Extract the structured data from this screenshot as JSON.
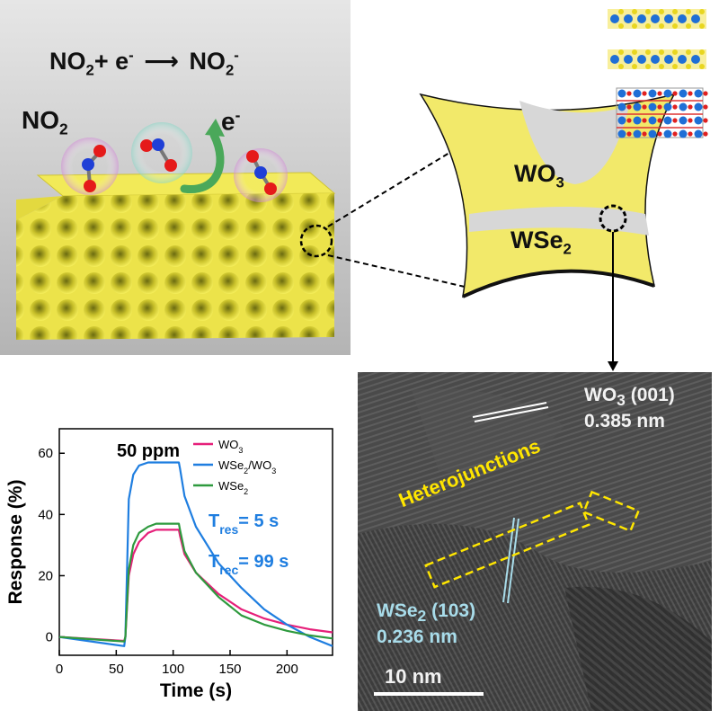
{
  "scheme": {
    "reaction": {
      "lhs": "NO",
      "lhs_sub": "2",
      "plus": "+ e",
      "e_sup": "-",
      "arrow": "⟶",
      "rhs": "NO",
      "rhs_sub": "2",
      "rhs_sup": "-"
    },
    "no2_label": {
      "text": "NO",
      "sub": "2"
    },
    "electron_label": {
      "text": "e",
      "sup": "-"
    }
  },
  "particle": {
    "phase_top": {
      "text": "WO",
      "sub": "3"
    },
    "phase_bottom": {
      "text": "WSe",
      "sub": "2"
    }
  },
  "tem": {
    "wo3_spacing": {
      "name": "WO",
      "sub": "3",
      "hkl": " (001)",
      "value": "0.385 nm"
    },
    "wse2_spacing": {
      "name": "WSe",
      "sub": "2",
      "hkl": " (103)",
      "value": "0.236 nm"
    },
    "heterojunction_label": "Heterojunctions",
    "scale_bar": "10 nm",
    "colors": {
      "wo3_fringe": "#ffffff",
      "wse2_fringe": "#a8dcea",
      "junction": "#ffe600"
    }
  },
  "chart_data": {
    "type": "line",
    "annotation": "50 ppm",
    "t_res": {
      "text": "T",
      "sub": "res",
      "value": "= 5 s"
    },
    "t_rec": {
      "text": "T",
      "sub": "rec",
      "value": "= 99 s"
    },
    "xlabel": "Time (s)",
    "ylabel": "Response (%)",
    "xlim": [
      0,
      240
    ],
    "ylim": [
      -6,
      68
    ],
    "xticks": [
      0,
      50,
      100,
      150,
      200
    ],
    "yticks": [
      0,
      20,
      40,
      60
    ],
    "legend_placement": "top-right",
    "series": [
      {
        "name": "WO3",
        "legend_text": "WO",
        "legend_sub": "3",
        "color": "#e6207a",
        "x": [
          0,
          57,
          58,
          61,
          65,
          70,
          78,
          85,
          95,
          105,
          106,
          110,
          120,
          140,
          160,
          180,
          200,
          220,
          240
        ],
        "y": [
          0,
          -1.3,
          0,
          20,
          27,
          31,
          34,
          35,
          35,
          35,
          33,
          27,
          21,
          14,
          9,
          6,
          4,
          2.5,
          1.5
        ]
      },
      {
        "name": "WSe2/WO3",
        "legend_text": "WSe",
        "legend_sub": "2",
        "legend_mid": "/WO",
        "legend_sub2": "3",
        "color": "#1f7ee0",
        "x": [
          0,
          57,
          58,
          61,
          65,
          70,
          78,
          85,
          95,
          105,
          106,
          110,
          120,
          140,
          160,
          180,
          200,
          220,
          240
        ],
        "y": [
          0,
          -3,
          0,
          45,
          53,
          56,
          57,
          57,
          57,
          57,
          55,
          46,
          36,
          24,
          16,
          9,
          4,
          0,
          -3
        ]
      },
      {
        "name": "WSe2",
        "legend_text": "WSe",
        "legend_sub": "2",
        "color": "#2e9a3e",
        "x": [
          0,
          57,
          58,
          61,
          65,
          70,
          78,
          85,
          95,
          105,
          106,
          110,
          120,
          140,
          160,
          180,
          200,
          220,
          240
        ],
        "y": [
          0,
          -1.5,
          0,
          22,
          30,
          34,
          36,
          37,
          37,
          37,
          35,
          28,
          21,
          13,
          7,
          4,
          2,
          0.5,
          -0.5
        ]
      }
    ]
  }
}
